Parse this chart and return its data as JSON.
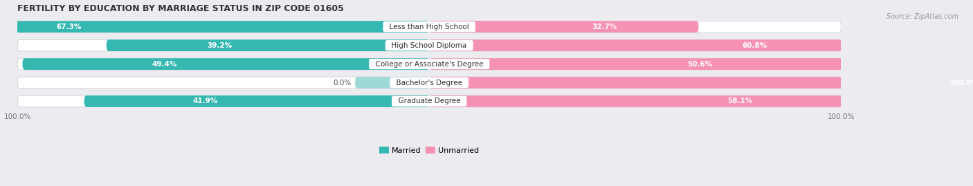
{
  "title": "FERTILITY BY EDUCATION BY MARRIAGE STATUS IN ZIP CODE 01605",
  "source": "Source: ZipAtlas.com",
  "categories": [
    "Less than High School",
    "High School Diploma",
    "College or Associate's Degree",
    "Bachelor's Degree",
    "Graduate Degree"
  ],
  "married": [
    67.3,
    39.2,
    49.4,
    0.0,
    41.9
  ],
  "unmarried": [
    32.7,
    60.8,
    50.6,
    100.0,
    58.1
  ],
  "married_color": "#35b8b2",
  "married_color_light": "#9dd9d6",
  "unmarried_color": "#f591b2",
  "background_color": "#ebebf0",
  "bar_bg_color": "#e0e0e8",
  "bar_height": 0.62,
  "figsize": [
    14.06,
    2.69
  ],
  "dpi": 100
}
